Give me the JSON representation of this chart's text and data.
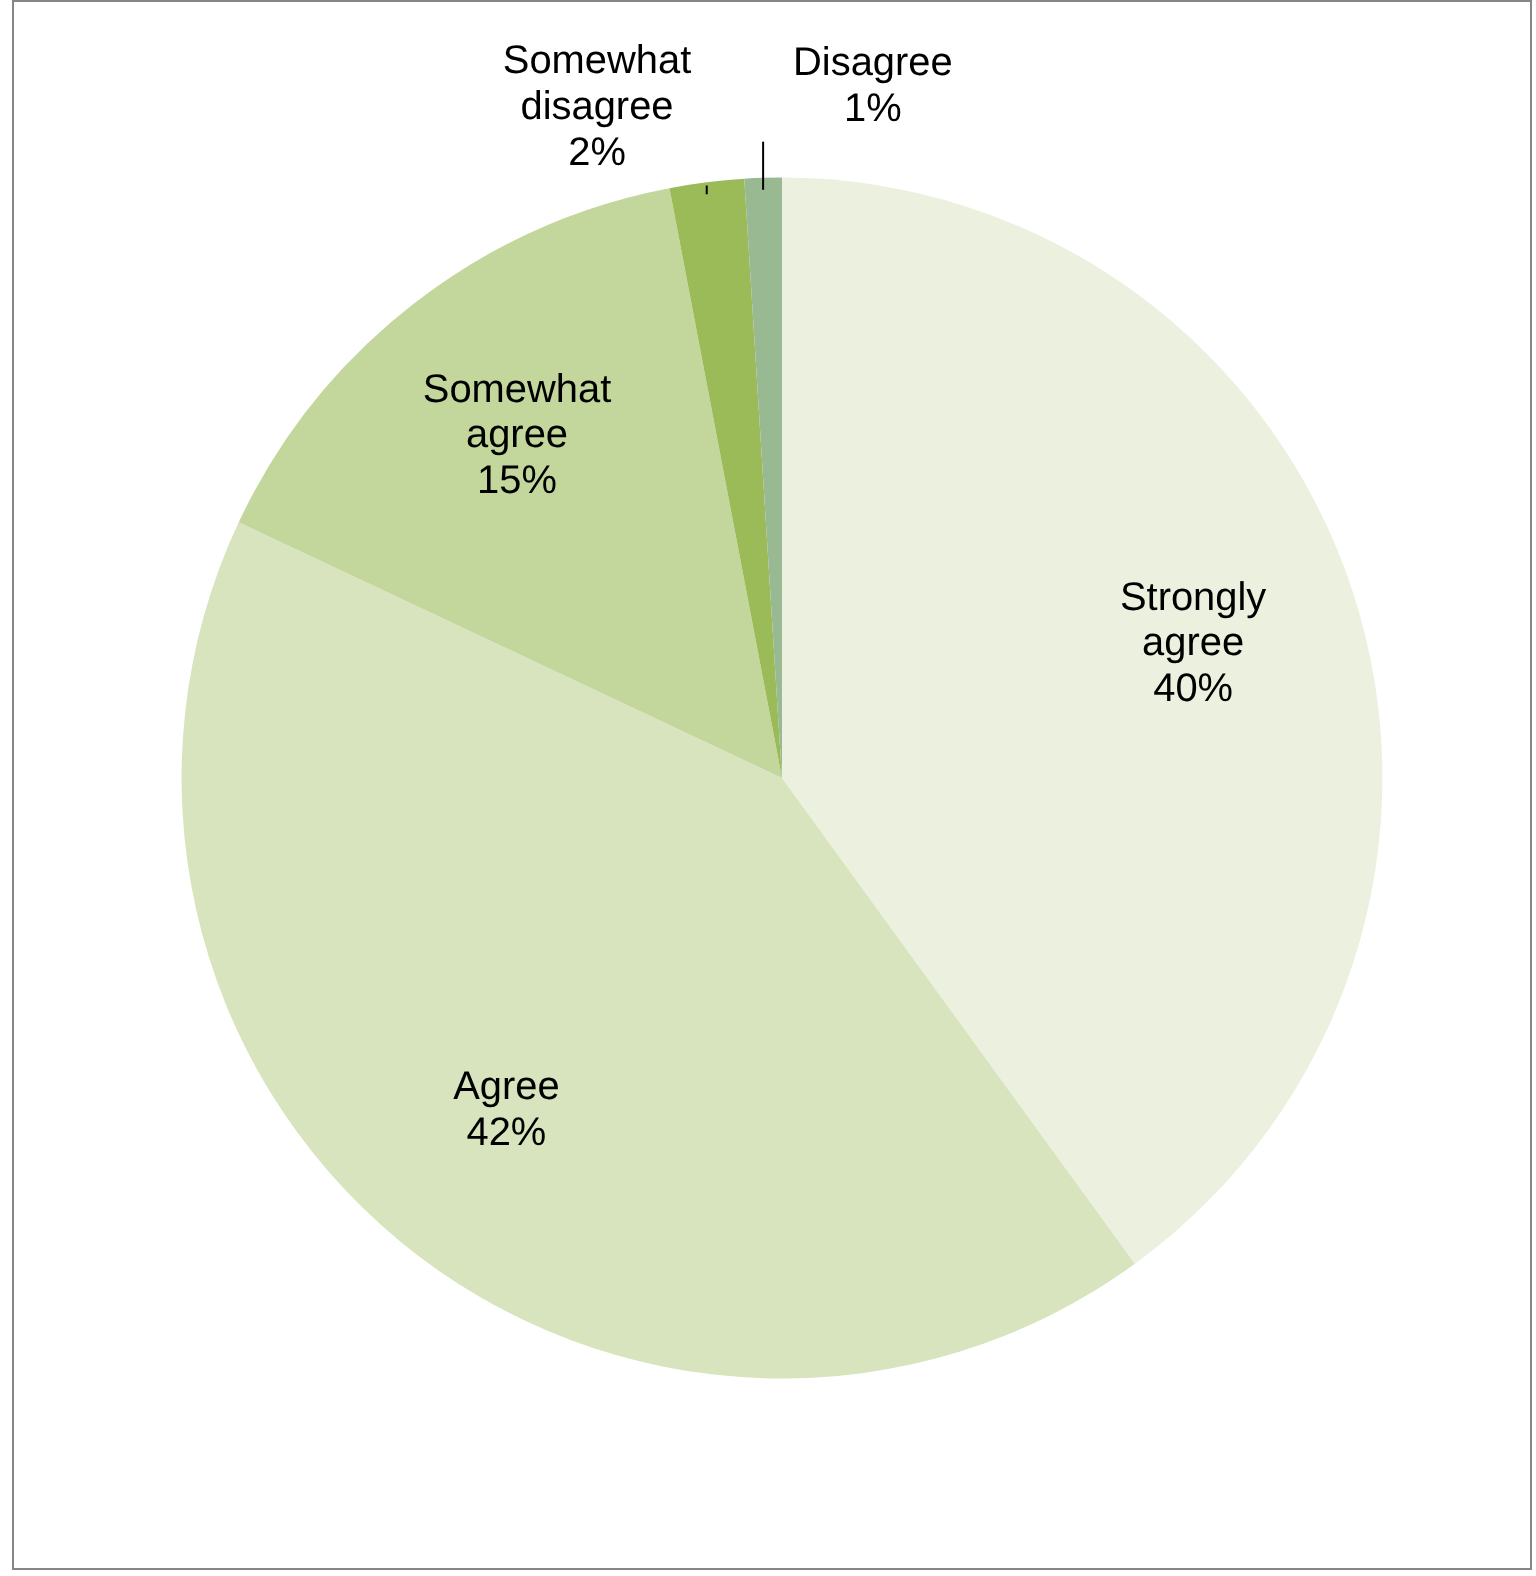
{
  "chart_data": {
    "type": "pie",
    "categories": [
      "Strongly agree",
      "Agree",
      "Somewhat agree",
      "Somewhat disagree",
      "Disagree"
    ],
    "values": [
      40,
      42,
      15,
      2,
      1
    ],
    "value_labels": [
      "40%",
      "42%",
      "15%",
      "2%",
      "1%"
    ],
    "colors": [
      "#ebf1de",
      "#d7e4bd",
      "#c3d69b",
      "#9bbb59",
      "#98b992"
    ],
    "legend": false
  }
}
